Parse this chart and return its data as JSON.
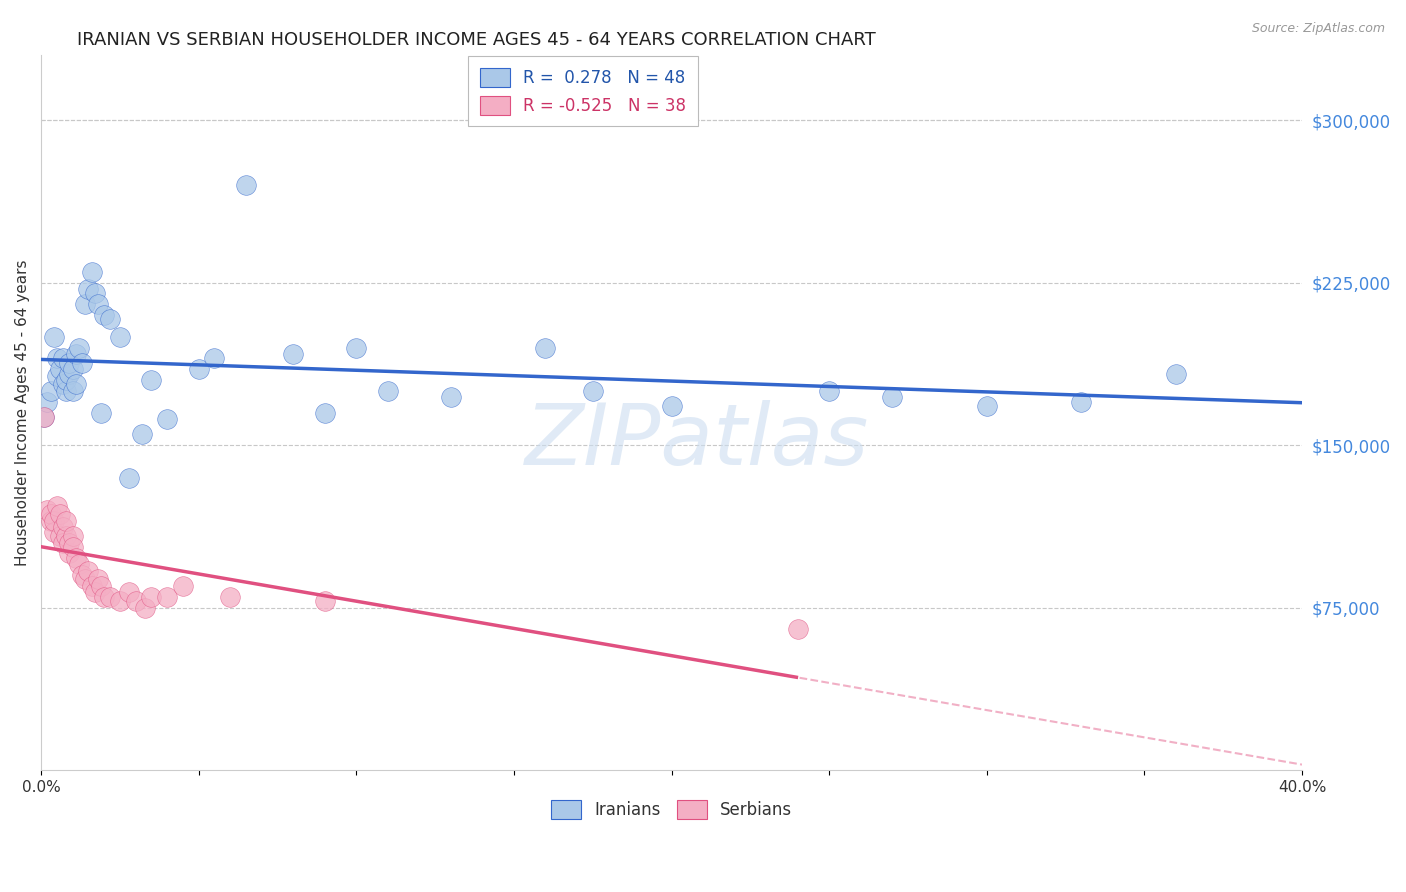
{
  "title": "IRANIAN VS SERBIAN HOUSEHOLDER INCOME AGES 45 - 64 YEARS CORRELATION CHART",
  "source": "Source: ZipAtlas.com",
  "ylabel": "Householder Income Ages 45 - 64 years",
  "xlim": [
    0.0,
    0.4
  ],
  "ylim": [
    0,
    330000
  ],
  "xticks": [
    0.0,
    0.05,
    0.1,
    0.15,
    0.2,
    0.25,
    0.3,
    0.35,
    0.4
  ],
  "xticklabels": [
    "0.0%",
    "",
    "",
    "",
    "",
    "",
    "",
    "",
    "40.0%"
  ],
  "yticks_right": [
    75000,
    150000,
    225000,
    300000
  ],
  "ytick_labels_right": [
    "$75,000",
    "$150,000",
    "$225,000",
    "$300,000"
  ],
  "iranian_R": 0.278,
  "iranian_N": 48,
  "serbian_R": -0.525,
  "serbian_N": 38,
  "iranian_color": "#aac8e8",
  "iranian_line_color": "#3366cc",
  "serbian_color": "#f4aec4",
  "serbian_line_color": "#e05080",
  "background_color": "#ffffff",
  "grid_color": "#c8c8c8",
  "watermark": "ZIPatlas",
  "title_fontsize": 13,
  "axis_label_fontsize": 11,
  "tick_fontsize": 11,
  "legend_fontsize": 12,
  "iranian_x": [
    0.001,
    0.002,
    0.003,
    0.004,
    0.005,
    0.005,
    0.006,
    0.007,
    0.007,
    0.008,
    0.008,
    0.009,
    0.009,
    0.01,
    0.01,
    0.011,
    0.011,
    0.012,
    0.013,
    0.014,
    0.015,
    0.016,
    0.017,
    0.018,
    0.019,
    0.02,
    0.022,
    0.025,
    0.028,
    0.032,
    0.035,
    0.04,
    0.05,
    0.055,
    0.065,
    0.08,
    0.09,
    0.1,
    0.11,
    0.13,
    0.16,
    0.175,
    0.2,
    0.25,
    0.27,
    0.3,
    0.33,
    0.36
  ],
  "iranian_y": [
    163000,
    170000,
    175000,
    200000,
    182000,
    190000,
    185000,
    178000,
    190000,
    175000,
    180000,
    183000,
    188000,
    185000,
    175000,
    192000,
    178000,
    195000,
    188000,
    215000,
    222000,
    230000,
    220000,
    215000,
    165000,
    210000,
    208000,
    200000,
    135000,
    155000,
    180000,
    162000,
    185000,
    190000,
    270000,
    192000,
    165000,
    195000,
    175000,
    172000,
    195000,
    175000,
    168000,
    175000,
    172000,
    168000,
    170000,
    183000
  ],
  "serbian_x": [
    0.001,
    0.002,
    0.003,
    0.003,
    0.004,
    0.004,
    0.005,
    0.006,
    0.006,
    0.007,
    0.007,
    0.008,
    0.008,
    0.009,
    0.009,
    0.01,
    0.01,
    0.011,
    0.012,
    0.013,
    0.014,
    0.015,
    0.016,
    0.017,
    0.018,
    0.019,
    0.02,
    0.022,
    0.025,
    0.028,
    0.03,
    0.033,
    0.035,
    0.04,
    0.045,
    0.06,
    0.09,
    0.24
  ],
  "serbian_y": [
    163000,
    120000,
    115000,
    118000,
    110000,
    115000,
    122000,
    108000,
    118000,
    112000,
    105000,
    108000,
    115000,
    100000,
    105000,
    108000,
    103000,
    98000,
    95000,
    90000,
    88000,
    92000,
    85000,
    82000,
    88000,
    85000,
    80000,
    80000,
    78000,
    82000,
    78000,
    75000,
    80000,
    80000,
    85000,
    80000,
    78000,
    65000
  ]
}
